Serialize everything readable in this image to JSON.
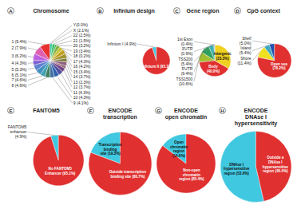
{
  "chart_data": [
    {
      "type": "pie",
      "title": "Chromosome",
      "categories": [
        "1 (9.4%)",
        "2 (7.9%)",
        "3 (6.2%)",
        "4 (4.3%)",
        "5 (5.3%)",
        "6 (5.1%)",
        "7 (4.6%)",
        "8 (4.6%)",
        "9 (4.1%)",
        "10 (4.3%)",
        "11 (4.3%)",
        "12 (3.7%)",
        "13 (2.3%)",
        "14 (3.7%)",
        "15 (3.4%)",
        "16 (4.2%)",
        "17 (4.3%)",
        "18 (0.2%)",
        "19 (3.4%)",
        "20 (3.2%)",
        "21 (1.5%)",
        "22 (2.5%)",
        "X (2.1%)",
        "Y(0.0%)"
      ],
      "values": [
        9.4,
        7.9,
        6.2,
        4.3,
        5.3,
        5.1,
        4.6,
        4.6,
        4.1,
        4.3,
        4.3,
        3.7,
        2.3,
        3.7,
        3.4,
        4.2,
        4.3,
        0.2,
        3.4,
        3.2,
        1.5,
        2.5,
        2.1,
        0.0
      ],
      "colors": [
        "#e83030",
        "#e060b0",
        "#c060e0",
        "#8060d0",
        "#6080d0",
        "#4090c0",
        "#40a0b0",
        "#408060",
        "#4070a0",
        "#3060b0",
        "#5050a0",
        "#704080",
        "#906070",
        "#906080",
        "#808040",
        "#a09030",
        "#c0a020",
        "#d0b010",
        "#c8c030",
        "#80b040",
        "#40a850",
        "#30c060",
        "#30c8a0",
        "#f0f0f0"
      ],
      "annotations": [
        "A"
      ]
    },
    {
      "type": "pie",
      "title": "Infinium design",
      "categories": [
        "Infinium I (4.9%)",
        "Infinium II (95.1%)"
      ],
      "values": [
        4.9,
        95.1
      ],
      "colors": [
        "#40c8e0",
        "#e03030"
      ],
      "annotations": [
        "B"
      ]
    },
    {
      "type": "pie",
      "title": "Gene region",
      "categories": [
        "1st Exon\n(0.4%)",
        "3'UTR\n(0.9%)",
        "TSS200\n(5.4%)",
        "5'UTR\n(9.4%)",
        "TSS1500\n(10.6%)",
        "Body\n(40.0%)",
        "Intergenic\n(33.3%)"
      ],
      "values": [
        0.4,
        0.9,
        5.4,
        9.4,
        10.6,
        40.0,
        33.3
      ],
      "colors": [
        "#2060c0",
        "#4090e0",
        "#40b0b0",
        "#30a060",
        "#a0c030",
        "#e03030",
        "#f0d020"
      ],
      "annotations": [
        "C"
      ]
    },
    {
      "type": "pie",
      "title": "CpG context",
      "categories": [
        "Shelf\n(5.0%)",
        "Island\n(5.4%)",
        "Shore\n(11.4%)",
        "Open sea\n(78.2%)"
      ],
      "values": [
        5.0,
        5.4,
        11.4,
        78.2
      ],
      "colors": [
        "#2050b0",
        "#40a8c0",
        "#f0e020",
        "#e03030"
      ],
      "annotations": [
        "D"
      ]
    },
    {
      "type": "pie",
      "title": "FANTOM5",
      "categories": [
        "FANTOM5\nenhancer\n(4.9%)",
        "No FANTOM5\nEnhancer (95.1%)"
      ],
      "values": [
        4.9,
        95.1
      ],
      "colors": [
        "#40c8e0",
        "#e03030"
      ],
      "annotations": [
        "E"
      ]
    },
    {
      "type": "pie",
      "title": "ENCODE\ntranscription",
      "categories": [
        "Transcription\nbinding\nsite (19.3%)",
        "Outside transcription\nbinding site (80.7%)"
      ],
      "values": [
        19.3,
        80.7
      ],
      "colors": [
        "#40c8e0",
        "#e03030"
      ],
      "annotations": [
        "F"
      ]
    },
    {
      "type": "pie",
      "title": "ENCODE\nopen chromatin",
      "categories": [
        "Open\nchromatin\nregion\n(14.6%)",
        "Non-open\nchromatin\nregion (85.4%)"
      ],
      "values": [
        14.6,
        85.4
      ],
      "colors": [
        "#40c8e0",
        "#e03030"
      ],
      "annotations": [
        "G"
      ]
    },
    {
      "type": "pie",
      "title": "ENCODE\nDNAse I\nhypersensitivity",
      "categories": [
        "DNAse I\nhypersensitive\nregion (53.6%)",
        "Outside a\nDNAse I\nhypersensitive\nregion (46.4%)"
      ],
      "values": [
        53.6,
        46.4
      ],
      "colors": [
        "#40c8e0",
        "#e03030"
      ],
      "annotations": [
        "H"
      ]
    }
  ]
}
